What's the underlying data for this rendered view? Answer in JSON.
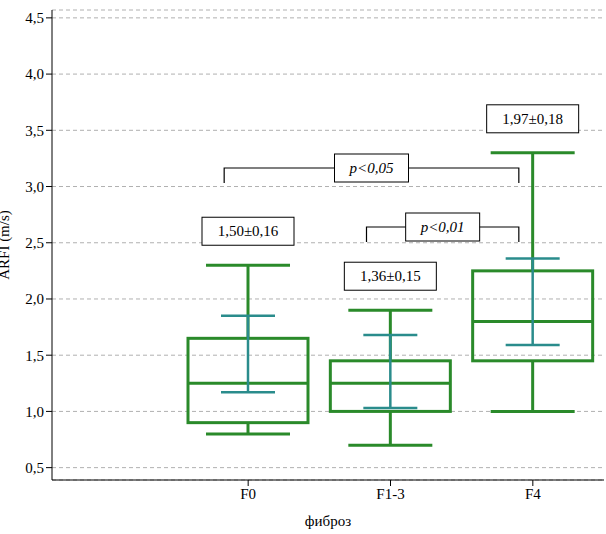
{
  "chart_data": {
    "type": "box",
    "x_label": "фиброз",
    "y_label": "ARFI (m/s)",
    "categories": [
      "F0",
      "F1-3",
      "F4"
    ],
    "whisker_low": [
      0.8,
      0.7,
      1.0
    ],
    "q1": [
      0.9,
      1.0,
      1.45
    ],
    "median": [
      1.25,
      1.25,
      1.8
    ],
    "q3": [
      1.65,
      1.45,
      2.25
    ],
    "whisker_high": [
      2.3,
      1.9,
      3.3
    ],
    "mean_ci_low": [
      1.17,
      1.03,
      1.59
    ],
    "mean_ci_high": [
      1.85,
      1.68,
      2.36
    ],
    "mean_labels": [
      "1,50±0,16",
      "1,36±0,15",
      "1,97±0,18"
    ],
    "annotations": [
      {
        "text": "p<0,05",
        "from": "F0",
        "to": "F4"
      },
      {
        "text": "p<0,01",
        "from": "F1-3",
        "to": "F4"
      }
    ],
    "color": "#2a8a2a",
    "ylim": [
      0.39,
      4.57
    ],
    "yticks": [
      {
        "value": 0.5,
        "label": "0,5"
      },
      {
        "value": 1.0,
        "label": "1,0"
      },
      {
        "value": 1.5,
        "label": "1,5"
      },
      {
        "value": 2.0,
        "label": "2,0"
      },
      {
        "value": 2.5,
        "label": "2,5"
      },
      {
        "value": 3.0,
        "label": "3,0"
      },
      {
        "value": 3.5,
        "label": "3,5"
      },
      {
        "value": 4.0,
        "label": "4,0"
      },
      {
        "value": 4.5,
        "label": "4,5"
      }
    ],
    "grid": true
  }
}
